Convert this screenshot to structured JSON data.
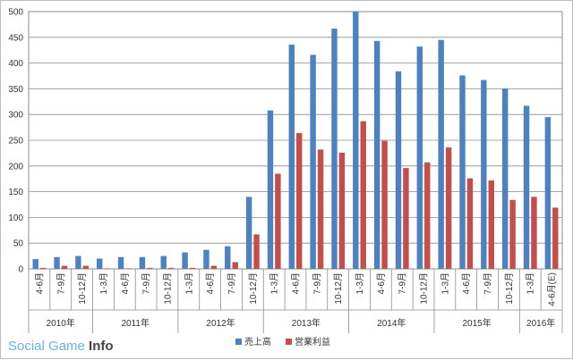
{
  "chart_data": {
    "type": "bar",
    "categories": [
      "4-6月",
      "7-9月",
      "10-12月",
      "1-3月",
      "4-6月",
      "7-9月",
      "10-12月",
      "1-3月",
      "4-6月",
      "7-9月",
      "10-12月",
      "1-3月",
      "4-6月",
      "7-9月",
      "10-12月",
      "1-3月",
      "4-6月",
      "7-9月",
      "10-12月",
      "1-3月",
      "4-6月",
      "7-9月",
      "10-12月",
      "1-3月",
      "4-6月(E)"
    ],
    "years": [
      {
        "label": "2010年",
        "count": 3
      },
      {
        "label": "2011年",
        "count": 4
      },
      {
        "label": "2012年",
        "count": 4
      },
      {
        "label": "2013年",
        "count": 4
      },
      {
        "label": "2014年",
        "count": 4
      },
      {
        "label": "2015年",
        "count": 4
      },
      {
        "label": "2016年",
        "count": 2
      }
    ],
    "series": [
      {
        "name": "売上高",
        "color": "#4f81bd",
        "values": [
          19,
          23,
          25,
          20,
          23,
          23,
          25,
          32,
          37,
          44,
          140,
          308,
          436,
          416,
          467,
          500,
          443,
          384,
          432,
          445,
          376,
          367,
          350,
          317,
          295
        ]
      },
      {
        "name": "営業利益",
        "color": "#c0504d",
        "values": [
          2,
          6,
          6,
          1,
          1,
          2,
          2,
          2,
          6,
          13,
          67,
          185,
          264,
          232,
          226,
          287,
          249,
          196,
          207,
          236,
          176,
          172,
          134,
          140,
          119
        ]
      }
    ],
    "ylim": [
      0,
      500
    ],
    "yticks": [
      0,
      50,
      100,
      150,
      200,
      250,
      300,
      350,
      400,
      450,
      500
    ],
    "grid": true,
    "legend": "bottom"
  },
  "brand": {
    "part1": "Social Game ",
    "part2": "Info"
  }
}
